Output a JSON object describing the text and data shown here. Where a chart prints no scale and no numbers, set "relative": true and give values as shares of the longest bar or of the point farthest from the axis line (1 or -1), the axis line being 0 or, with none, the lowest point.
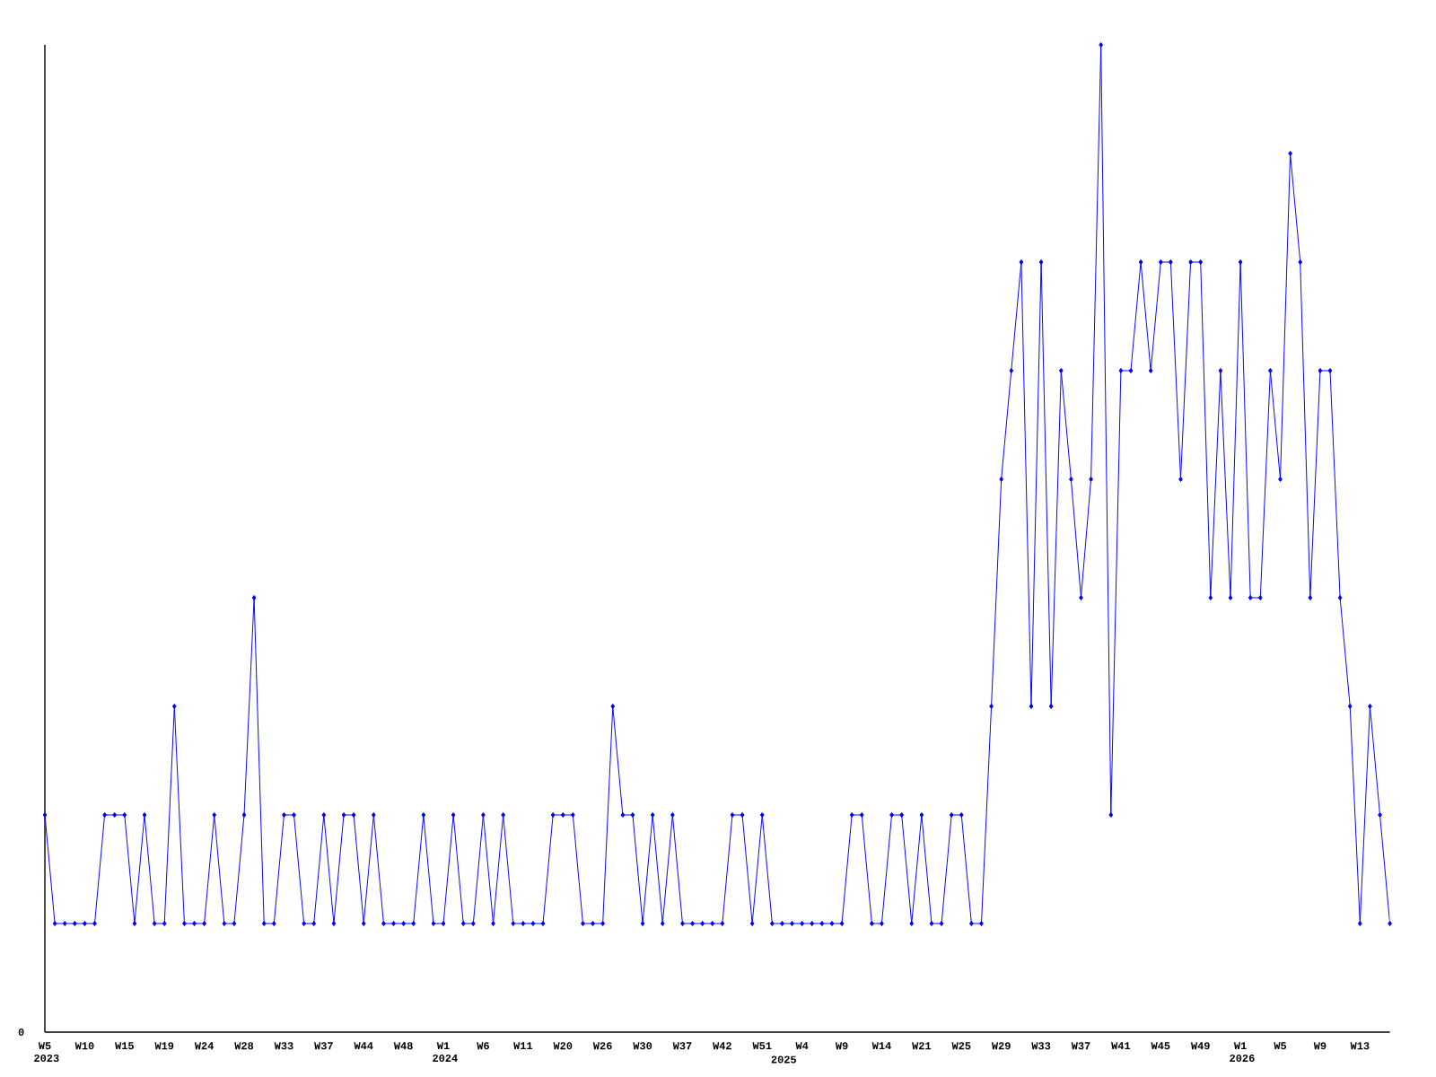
{
  "chart_data": {
    "type": "line",
    "relative": true,
    "color": "#0000ff",
    "marker": "diamond",
    "categories": [
      "W5 2023",
      null,
      null,
      null,
      "W10",
      null,
      null,
      null,
      "W15",
      null,
      null,
      null,
      "W19",
      null,
      null,
      null,
      "W24",
      null,
      null,
      null,
      "W28",
      null,
      null,
      null,
      "W33",
      null,
      null,
      null,
      "W37",
      null,
      null,
      null,
      "W44",
      null,
      null,
      null,
      "W48",
      null,
      null,
      null,
      "W1 2024",
      null,
      null,
      null,
      "W6",
      null,
      null,
      null,
      "W11",
      null,
      null,
      null,
      "W20",
      null,
      null,
      null,
      "W26",
      null,
      null,
      null,
      "W30",
      null,
      null,
      null,
      "W37",
      null,
      null,
      null,
      "W42",
      null,
      null,
      null,
      "W51",
      null,
      "2025",
      null,
      "W4",
      null,
      null,
      null,
      "W9",
      null,
      null,
      null,
      "W14",
      null,
      null,
      null,
      "W21",
      null,
      null,
      null,
      "W25",
      null,
      null,
      null,
      "W29",
      null,
      null,
      null,
      "W33",
      null,
      null,
      null,
      "W37",
      null,
      null,
      null,
      "W41",
      null,
      null,
      null,
      "W45",
      null,
      null,
      null,
      "W49",
      null,
      null,
      null,
      "W1 2026",
      null,
      null,
      null,
      "W5",
      null,
      null,
      null,
      "W9",
      null,
      null,
      null,
      "W13",
      null,
      null,
      null
    ],
    "values": [
      0.22,
      0.11,
      0.11,
      0.11,
      0.11,
      0.11,
      0.22,
      0.22,
      0.22,
      0.11,
      0.22,
      0.11,
      0.11,
      0.33,
      0.11,
      0.11,
      0.11,
      0.22,
      0.11,
      0.11,
      0.22,
      0.44,
      0.11,
      0.11,
      0.22,
      0.22,
      0.11,
      0.11,
      0.22,
      0.11,
      0.22,
      0.22,
      0.11,
      0.22,
      0.11,
      0.11,
      0.11,
      0.11,
      0.22,
      0.11,
      0.11,
      0.22,
      0.11,
      0.11,
      0.22,
      0.11,
      0.22,
      0.11,
      0.11,
      0.11,
      0.11,
      0.22,
      0.22,
      0.22,
      0.11,
      0.11,
      0.11,
      0.33,
      0.22,
      0.22,
      0.11,
      0.22,
      0.11,
      0.22,
      0.11,
      0.11,
      0.11,
      0.11,
      0.11,
      0.22,
      0.22,
      0.11,
      0.22,
      0.11,
      0.11,
      0.11,
      0.11,
      0.11,
      0.11,
      0.11,
      0.11,
      0.22,
      0.22,
      0.11,
      0.11,
      0.22,
      0.22,
      0.11,
      0.22,
      0.11,
      0.11,
      0.22,
      0.22,
      0.11,
      0.11,
      0.33,
      0.56,
      0.67,
      0.78,
      0.33,
      0.78,
      0.33,
      0.67,
      0.56,
      0.44,
      0.56,
      1,
      0.22,
      0.67,
      0.67,
      0.78,
      0.67,
      0.78,
      0.78,
      0.56,
      0.78,
      0.78,
      0.44,
      0.67,
      0.44,
      0.78,
      0.44,
      0.44,
      0.67,
      0.56,
      0.89,
      0.78,
      0.44,
      0.67,
      0.67,
      0.44,
      0.33,
      0.11,
      0.33,
      0.22,
      0.11
    ],
    "annotations": [
      "0"
    ]
  }
}
